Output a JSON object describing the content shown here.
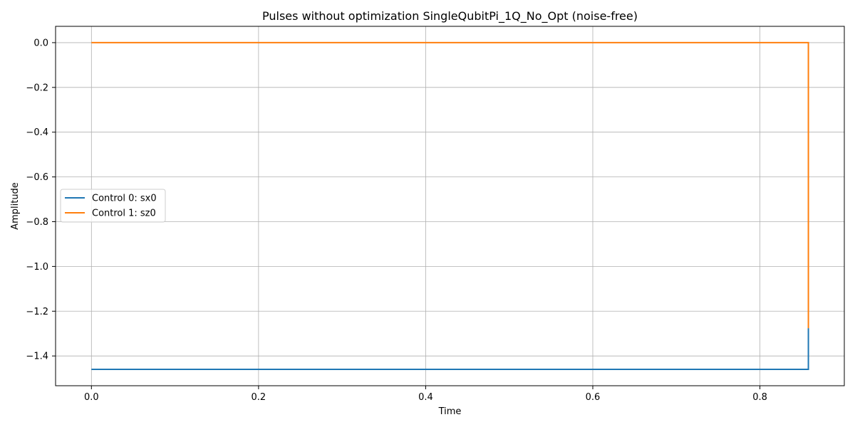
{
  "chart_data": {
    "type": "line",
    "title": "Pulses without optimization SingleQubitPi_1Q_No_Opt (noise-free)",
    "xlabel": "Time",
    "ylabel": "Amplitude",
    "xlim": [
      -0.0429,
      0.901
    ],
    "ylim": [
      -1.533,
      0.0729
    ],
    "xticks": [
      0.0,
      0.2,
      0.4,
      0.6,
      0.8
    ],
    "xtick_labels": [
      "0.0",
      "0.2",
      "0.4",
      "0.6",
      "0.8"
    ],
    "yticks": [
      0.0,
      -0.2,
      -0.4,
      -0.6,
      -0.8,
      -1.0,
      -1.2,
      -1.4
    ],
    "ytick_labels": [
      "0.0",
      "−0.2",
      "−0.4",
      "−0.6",
      "−0.8",
      "−1.0",
      "−1.2",
      "−1.4"
    ],
    "grid": true,
    "legend_position": "center-left",
    "series": [
      {
        "name": "Control 0: sx0",
        "color": "#1f77b4",
        "x": [
          0.0,
          0.858,
          0.858
        ],
        "y": [
          -1.46,
          -1.46,
          -1.276
        ]
      },
      {
        "name": "Control 1: sz0",
        "color": "#ff7f0e",
        "x": [
          0.0,
          0.858,
          0.858
        ],
        "y": [
          0.0,
          0.0,
          -1.276
        ]
      }
    ]
  }
}
